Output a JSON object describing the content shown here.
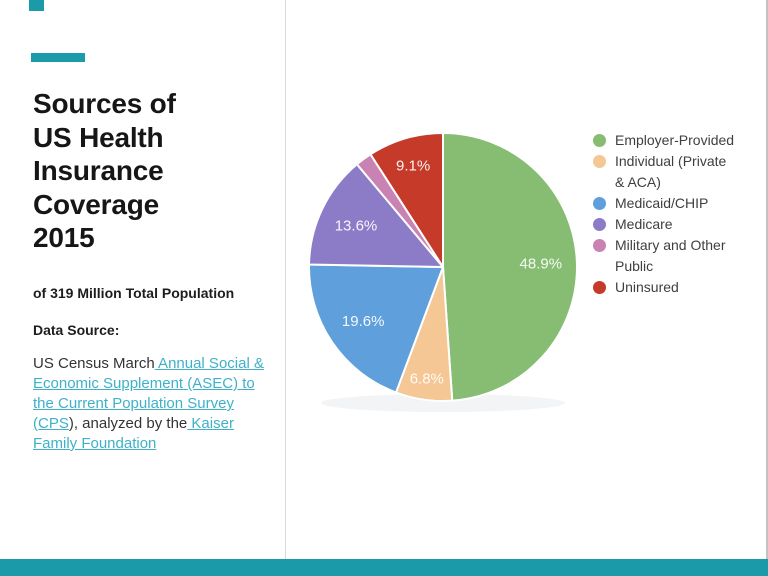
{
  "slide": {
    "accent_color": "#1B9AAA",
    "link_color": "#3EB1C8",
    "title": "Sources of\nUS Health\nInsurance\nCoverage\n2015",
    "subtitle": "of 319 Million Total Population",
    "data_source_label": "Data Source:",
    "source_lines": [
      [
        {
          "text": "US Census March",
          "link": false
        },
        {
          "text": " Annual Social &",
          "link": true
        }
      ],
      [
        {
          "text": "Economic Supplement (ASEC) to",
          "link": true
        }
      ],
      [
        {
          "text": "the Current Population Survey",
          "link": true
        }
      ],
      [
        {
          "text": "(CPS",
          "link": true
        },
        {
          "text": "), analyzed by the",
          "link": false
        },
        {
          "text": " Kaiser",
          "link": true
        }
      ],
      [
        {
          "text": "Family Foundation",
          "link": true
        }
      ]
    ]
  },
  "chart_data": {
    "type": "pie",
    "title": "",
    "legend_position": "right",
    "start_angle_deg": 0,
    "clockwise": true,
    "center": [
      443,
      267
    ],
    "radius": 134,
    "slices": [
      {
        "name": "Employer-Provided",
        "value": 48.9,
        "pct_label": "48.9%",
        "color": "#86BD72",
        "label_r": 0.73,
        "legend_lines": [
          "Employer-Provided"
        ]
      },
      {
        "name": "Individual (Private & ACA)",
        "value": 6.8,
        "pct_label": "6.8%",
        "color": "#F5C794",
        "label_r": 0.84,
        "legend_lines": [
          "Individual (Private",
          "& ACA)"
        ]
      },
      {
        "name": "Medicaid/CHIP",
        "value": 19.6,
        "pct_label": "19.6%",
        "color": "#5FA0DC",
        "label_r": 0.72,
        "legend_lines": [
          "Medicaid/CHIP"
        ]
      },
      {
        "name": "Medicare",
        "value": 13.6,
        "pct_label": "13.6%",
        "color": "#8C7CC8",
        "label_r": 0.72,
        "legend_lines": [
          "Medicare"
        ]
      },
      {
        "name": "Military and Other Public",
        "value": 2.0,
        "pct_label": "",
        "color": "#C983B2",
        "label_r": 0,
        "legend_lines": [
          "Military and Other",
          "Public"
        ]
      },
      {
        "name": "Uninsured",
        "value": 9.1,
        "pct_label": "9.1%",
        "color": "#C53A28",
        "label_r": 0.79,
        "legend_lines": [
          "Uninsured"
        ]
      }
    ]
  }
}
